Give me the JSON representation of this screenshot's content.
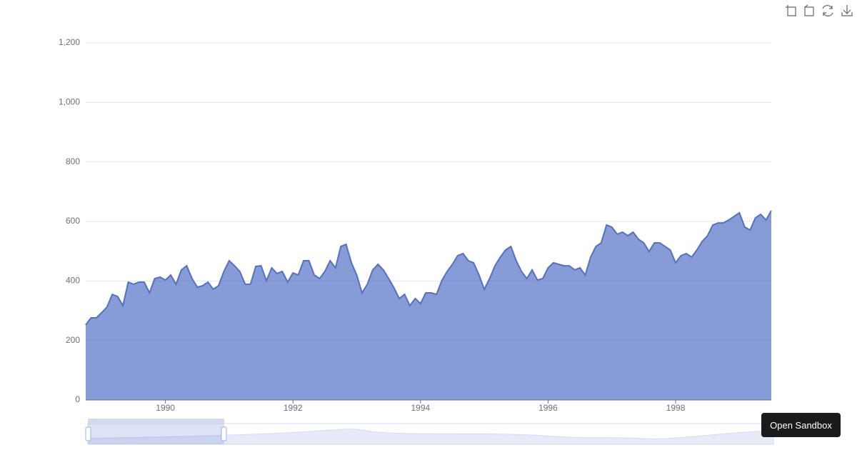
{
  "chart_data": {
    "type": "area",
    "x": [
      1988.75,
      1988.833,
      1988.917,
      1989,
      1989.083,
      1989.167,
      1989.25,
      1989.333,
      1989.417,
      1989.5,
      1989.583,
      1989.667,
      1989.75,
      1989.833,
      1989.917,
      1990,
      1990.083,
      1990.167,
      1990.25,
      1990.333,
      1990.417,
      1990.5,
      1990.583,
      1990.667,
      1990.75,
      1990.833,
      1990.917,
      1991,
      1991.083,
      1991.167,
      1991.25,
      1991.333,
      1991.417,
      1991.5,
      1991.583,
      1991.667,
      1991.75,
      1991.833,
      1991.917,
      1992,
      1992.083,
      1992.167,
      1992.25,
      1992.333,
      1992.417,
      1992.5,
      1992.583,
      1992.667,
      1992.75,
      1992.833,
      1992.917,
      1993,
      1993.083,
      1993.167,
      1993.25,
      1993.333,
      1993.417,
      1993.5,
      1993.583,
      1993.667,
      1993.75,
      1993.833,
      1993.917,
      1994,
      1994.083,
      1994.167,
      1994.25,
      1994.333,
      1994.417,
      1994.5,
      1994.583,
      1994.667,
      1994.75,
      1994.833,
      1994.917,
      1995,
      1995.083,
      1995.167,
      1995.25,
      1995.333,
      1995.417,
      1995.5,
      1995.583,
      1995.667,
      1995.75,
      1995.833,
      1995.917,
      1996,
      1996.083,
      1996.167,
      1996.25,
      1996.333,
      1996.417,
      1996.5,
      1996.583,
      1996.667,
      1996.75,
      1996.833,
      1996.917,
      1997,
      1997.083,
      1997.167,
      1997.25,
      1997.333,
      1997.417,
      1997.5,
      1997.583,
      1997.667,
      1997.75,
      1997.833,
      1997.917,
      1998,
      1998.083,
      1998.167,
      1998.25,
      1998.333,
      1998.417,
      1998.5,
      1998.583,
      1998.667,
      1998.75,
      1998.833,
      1998.917,
      1999,
      1999.083,
      1999.167,
      1999.25,
      1999.333,
      1999.417,
      1999.5
    ],
    "series": [
      {
        "color": "#5470c6",
        "values": [
          252,
          276,
          276,
          293,
          312,
          355,
          348,
          317,
          396,
          389,
          396,
          396,
          360,
          408,
          413,
          403,
          420,
          389,
          437,
          451,
          408,
          379,
          384,
          396,
          372,
          384,
          432,
          468,
          451,
          432,
          389,
          389,
          449,
          451,
          401,
          444,
          425,
          432,
          396,
          427,
          420,
          468,
          468,
          420,
          408,
          432,
          468,
          444,
          516,
          523,
          461,
          420,
          360,
          389,
          437,
          456,
          437,
          408,
          377,
          341,
          355,
          317,
          341,
          324,
          360,
          360,
          355,
          401,
          432,
          456,
          485,
          492,
          468,
          461,
          420,
          372,
          408,
          451,
          480,
          504,
          516,
          468,
          432,
          408,
          437,
          403,
          408,
          444,
          461,
          456,
          451,
          451,
          437,
          444,
          420,
          480,
          516,
          528,
          588,
          581,
          557,
          564,
          552,
          564,
          540,
          528,
          499,
          528,
          528,
          516,
          504,
          461,
          485,
          492,
          480,
          504,
          533,
          552,
          588,
          595,
          595,
          605,
          617,
          629,
          581,
          571,
          612,
          624,
          605,
          636
        ]
      }
    ],
    "xlim": [
      1988.75,
      1999.5
    ],
    "xticks": [
      1990,
      1992,
      1994,
      1996,
      1998
    ],
    "ylim": [
      0,
      1200
    ],
    "yticks": [
      0,
      200,
      400,
      600,
      800,
      {
        "value": 1000,
        "label": "1,000"
      },
      {
        "value": 1200,
        "label": "1,200"
      }
    ],
    "grid": true
  },
  "sandbox_button": "Open Sandbox"
}
